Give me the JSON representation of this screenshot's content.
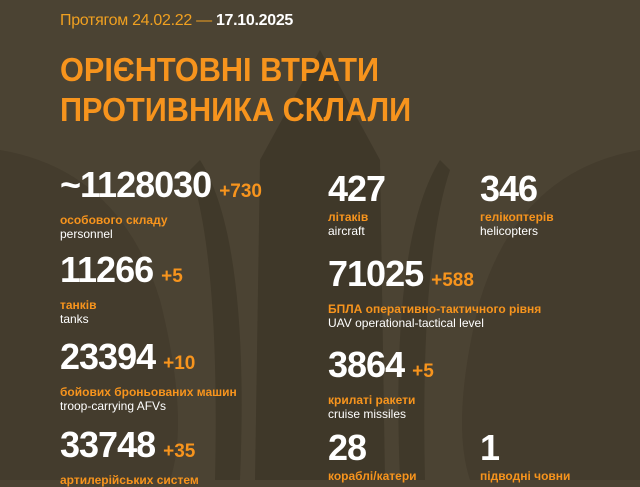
{
  "header": {
    "period_prefix": "Протягом 24.02.22 —",
    "period_date": "17.10.2025",
    "title_line1": "ОРІЄНТОВНІ ВТРАТИ",
    "title_line2": "ПРОТИВНИКА СКЛАЛИ"
  },
  "colors": {
    "background": "#4b4333",
    "accent": "#f7941d",
    "text": "#ffffff"
  },
  "stats": {
    "personnel": {
      "value": "~1128030",
      "delta": "+730",
      "ua": "особового складу",
      "en": "personnel"
    },
    "tanks": {
      "value": "11266",
      "delta": "+5",
      "ua": "танків",
      "en": "tanks"
    },
    "afv": {
      "value": "23394",
      "delta": "+10",
      "ua": "бойових броньованих машин",
      "en": "troop-carrying AFVs"
    },
    "artillery": {
      "value": "33748",
      "delta": "+35",
      "ua": "артилерійських систем"
    },
    "aircraft": {
      "value": "427",
      "ua": "літаків",
      "en": "aircraft"
    },
    "helicopters": {
      "value": "346",
      "ua": "гелікоптерів",
      "en": "helicopters"
    },
    "uav": {
      "value": "71025",
      "delta": "+588",
      "ua": "БПЛА оперативно-тактичного рівня",
      "en": "UAV operational-tactical level"
    },
    "cruise_missiles": {
      "value": "3864",
      "delta": "+5",
      "ua": "крилаті ракети",
      "en": "cruise missiles"
    },
    "ships": {
      "value": "28",
      "ua": "кораблі/катери"
    },
    "submarines": {
      "value": "1",
      "ua": "підводні човни"
    }
  }
}
